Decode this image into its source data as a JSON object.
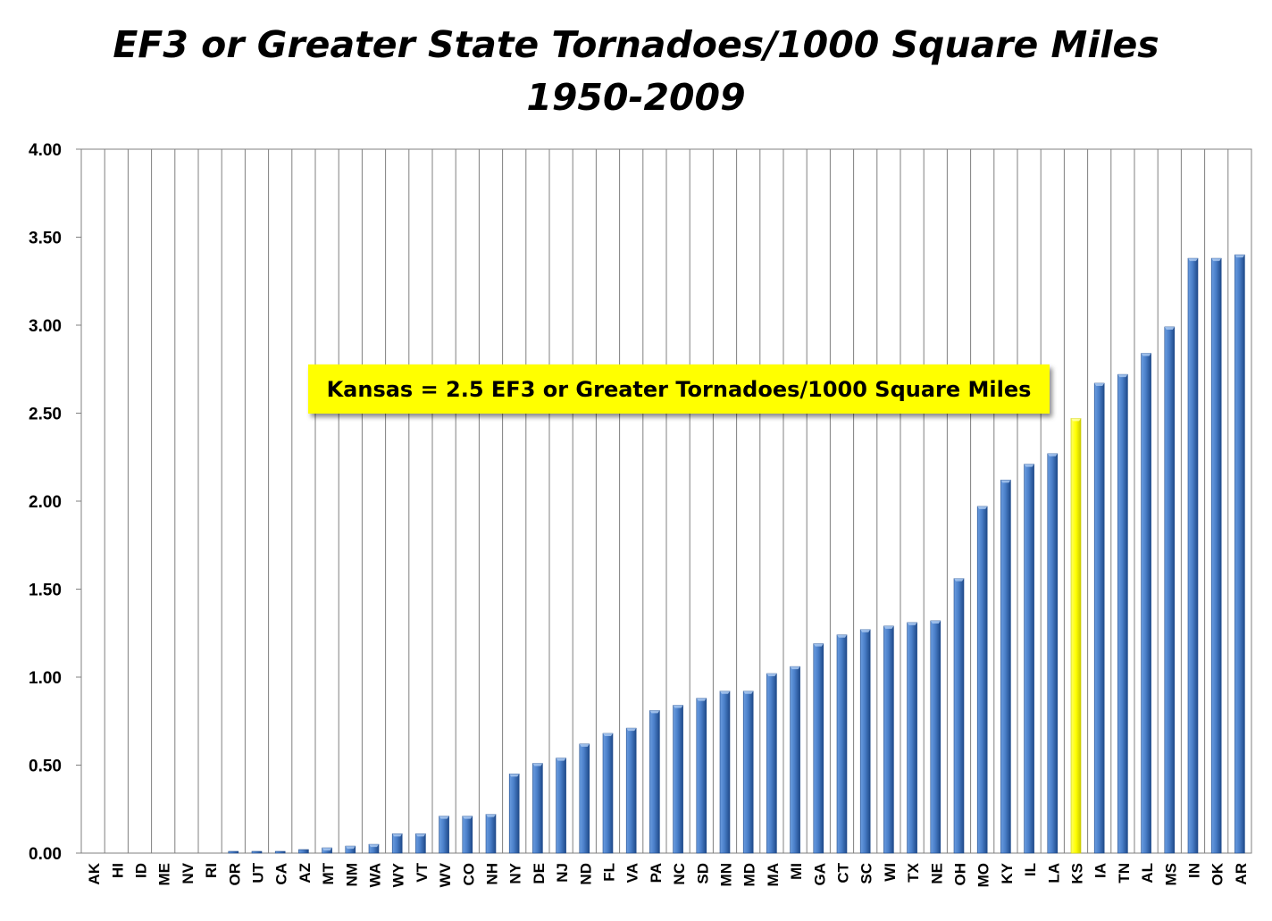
{
  "chart_data": {
    "type": "bar",
    "title": "EF3 or Greater State Tornadoes/1000 Square Miles",
    "subtitle": "1950-2009",
    "ylim": [
      0,
      4
    ],
    "yticks": [
      "0.00",
      "0.50",
      "1.00",
      "1.50",
      "2.00",
      "2.50",
      "3.00",
      "3.50",
      "4.00"
    ],
    "grid": true,
    "categories": [
      "AK",
      "HI",
      "ID",
      "ME",
      "NV",
      "RI",
      "OR",
      "UT",
      "CA",
      "AZ",
      "MT",
      "NM",
      "WA",
      "WY",
      "VT",
      "WV",
      "CO",
      "NH",
      "NY",
      "DE",
      "NJ",
      "ND",
      "FL",
      "VA",
      "PA",
      "NC",
      "SD",
      "MN",
      "MD",
      "MA",
      "MI",
      "GA",
      "CT",
      "SC",
      "WI",
      "TX",
      "NE",
      "OH",
      "MO",
      "KY",
      "IL",
      "LA",
      "KS",
      "IA",
      "TN",
      "AL",
      "MS",
      "IN",
      "OK",
      "AR"
    ],
    "values": [
      0,
      0,
      0,
      0,
      0,
      0,
      0.01,
      0.01,
      0.01,
      0.02,
      0.03,
      0.04,
      0.05,
      0.11,
      0.11,
      0.21,
      0.21,
      0.22,
      0.45,
      0.51,
      0.54,
      0.62,
      0.68,
      0.71,
      0.81,
      0.84,
      0.88,
      0.92,
      0.92,
      1.02,
      1.06,
      1.19,
      1.24,
      1.27,
      1.29,
      1.31,
      1.32,
      1.56,
      1.97,
      2.12,
      2.21,
      2.27,
      2.47,
      2.67,
      2.72,
      2.84,
      2.99,
      3.38,
      3.38,
      3.4
    ],
    "highlight": "KS",
    "colors": {
      "bar": "#4a7fc9",
      "bar_dark": "#1f4a8a",
      "highlight": "#ffff00",
      "highlight_dark": "#c9c900",
      "grid": "#808080"
    },
    "annotation": "Kansas = 2.5 EF3 or Greater Tornadoes/1000 Square Miles"
  }
}
